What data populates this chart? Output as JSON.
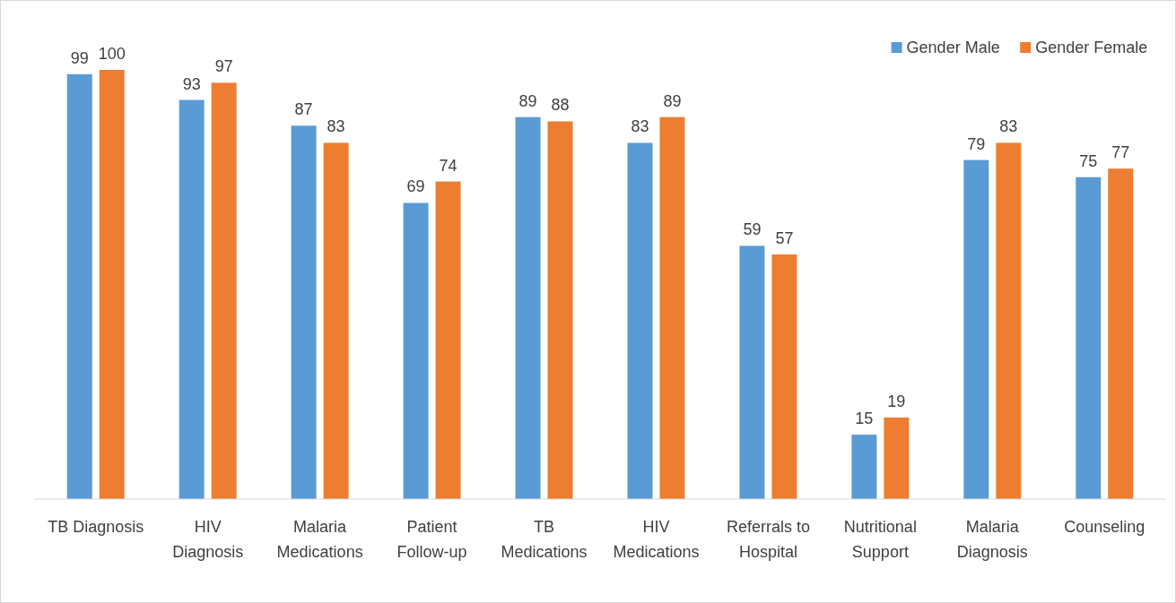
{
  "chart_data": {
    "type": "bar",
    "categories": [
      "TB Diagnosis",
      "HIV\nDiagnosis",
      "Malaria\nMedications",
      "Patient\nFollow-up",
      "TB\nMedications",
      "HIV\nMedications",
      "Referrals to\nHospital",
      "Nutritional\nSupport",
      "Malaria\nDiagnosis",
      "Counseling"
    ],
    "series": [
      {
        "name": "Gender Male",
        "color": "#5b9bd5",
        "values": [
          99,
          93,
          87,
          69,
          89,
          83,
          59,
          15,
          79,
          75
        ]
      },
      {
        "name": "Gender Female",
        "color": "#ed7d31",
        "values": [
          100,
          97,
          83,
          74,
          88,
          89,
          57,
          19,
          83,
          77
        ]
      }
    ],
    "data_labels": true,
    "legend": "top right"
  }
}
